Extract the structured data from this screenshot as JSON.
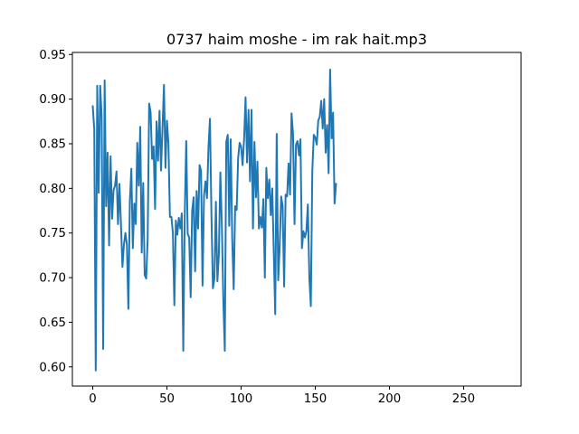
{
  "chart_data": {
    "type": "line",
    "title": "0737 haim moshe - im rak hait.mp3",
    "xlabel": "",
    "ylabel": "",
    "xlim": [
      -13.75,
      288.75
    ],
    "ylim": [
      0.5785,
      0.9523
    ],
    "x_ticks": [
      0,
      50,
      100,
      150,
      200,
      250
    ],
    "y_ticks": [
      0.6,
      0.65,
      0.7,
      0.75,
      0.8,
      0.85,
      0.9,
      0.95
    ],
    "x_tick_labels": [
      "0",
      "50",
      "100",
      "150",
      "200",
      "250"
    ],
    "y_tick_labels": [
      "0.60",
      "0.65",
      "0.70",
      "0.75",
      "0.80",
      "0.85",
      "0.90",
      "0.95"
    ],
    "grid": false,
    "series": [
      {
        "color": "#1f77b4",
        "values": [
          0.892,
          0.866,
          0.596,
          0.915,
          0.795,
          0.915,
          0.88,
          0.62,
          0.921,
          0.78,
          0.84,
          0.736,
          0.836,
          0.766,
          0.798,
          0.803,
          0.819,
          0.76,
          0.805,
          0.76,
          0.712,
          0.737,
          0.75,
          0.737,
          0.665,
          0.786,
          0.822,
          0.733,
          0.783,
          0.76,
          0.851,
          0.803,
          0.869,
          0.728,
          0.806,
          0.703,
          0.699,
          0.742,
          0.895,
          0.885,
          0.833,
          0.847,
          0.777,
          0.875,
          0.831,
          0.887,
          0.82,
          0.867,
          0.916,
          0.823,
          0.876,
          0.85,
          0.768,
          0.768,
          0.75,
          0.669,
          0.764,
          0.748,
          0.767,
          0.755,
          0.772,
          0.618,
          0.77,
          0.853,
          0.749,
          0.745,
          0.678,
          0.775,
          0.79,
          0.707,
          0.797,
          0.755,
          0.826,
          0.82,
          0.691,
          0.792,
          0.808,
          0.789,
          0.846,
          0.878,
          0.77,
          0.688,
          0.699,
          0.785,
          0.696,
          0.726,
          0.818,
          0.76,
          0.675,
          0.618,
          0.852,
          0.86,
          0.758,
          0.855,
          0.744,
          0.687,
          0.78,
          0.776,
          0.834,
          0.851,
          0.847,
          0.826,
          0.855,
          0.902,
          0.829,
          0.888,
          0.808,
          0.888,
          0.755,
          0.852,
          0.79,
          0.83,
          0.755,
          0.768,
          0.756,
          0.788,
          0.7,
          0.823,
          0.789,
          0.81,
          0.77,
          0.8,
          0.729,
          0.659,
          0.861,
          0.697,
          0.734,
          0.791,
          0.78,
          0.69,
          0.793,
          0.791,
          0.828,
          0.793,
          0.884,
          0.861,
          0.76,
          0.849,
          0.853,
          0.837,
          0.855,
          0.733,
          0.752,
          0.745,
          0.752,
          0.782,
          0.7,
          0.668,
          0.82,
          0.86,
          0.857,
          0.849,
          0.876,
          0.88,
          0.898,
          0.867,
          0.9,
          0.84,
          0.871,
          0.817,
          0.933,
          0.856,
          0.885,
          0.783,
          0.805
        ]
      }
    ]
  }
}
